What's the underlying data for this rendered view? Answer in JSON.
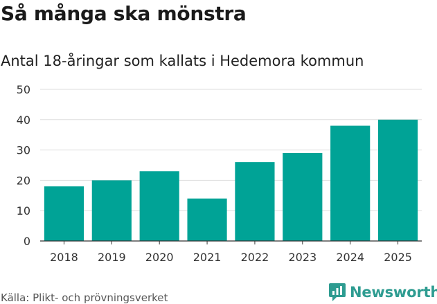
{
  "header": {
    "title": "Så många ska mönstra",
    "subtitle": "Antal 18-åringar som kallats i Hedemora kommun"
  },
  "footer": {
    "source": "Källa: Plikt- och prövningsverket",
    "brand": "Newsworthy",
    "brand_icon": "newsworthy-logo-icon"
  },
  "colors": {
    "bar": "#00a396",
    "grid": "#dddddd",
    "axis": "#333333",
    "brand": "#2e9c91"
  },
  "chart_data": {
    "type": "bar",
    "title": "Så många ska mönstra",
    "subtitle": "Antal 18-åringar som kallats i Hedemora kommun",
    "categories": [
      "2018",
      "2019",
      "2020",
      "2021",
      "2022",
      "2023",
      "2024",
      "2025"
    ],
    "values": [
      18,
      20,
      23,
      14,
      26,
      29,
      38,
      40
    ],
    "ylim": [
      0,
      50
    ],
    "yticks": [
      0,
      10,
      20,
      30,
      40,
      50
    ],
    "xlabel": "",
    "ylabel": "",
    "grid": true,
    "legend": "none"
  }
}
